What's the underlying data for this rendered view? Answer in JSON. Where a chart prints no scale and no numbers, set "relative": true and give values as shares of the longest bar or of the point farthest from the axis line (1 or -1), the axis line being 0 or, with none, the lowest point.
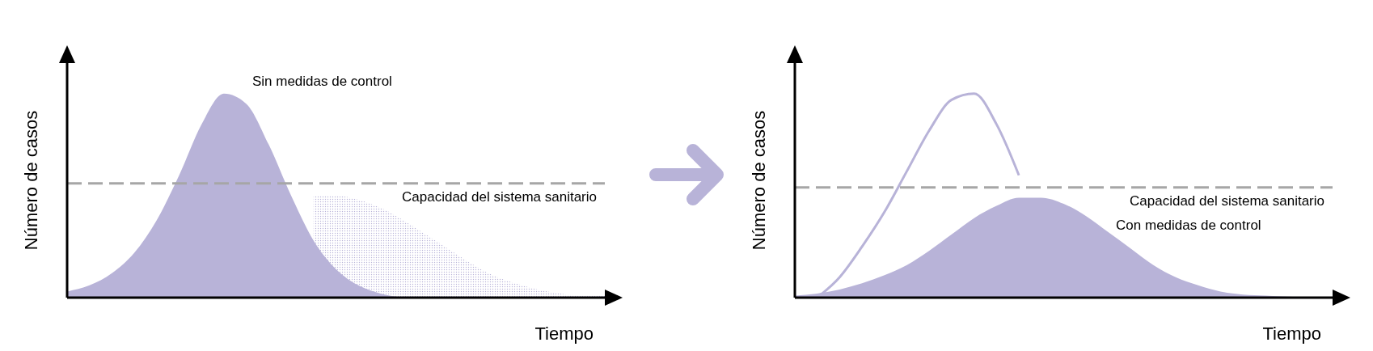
{
  "chart_data": [
    {
      "type": "area",
      "relative": true,
      "xlabel": "Tiempo",
      "ylabel": "Número de casos",
      "categories": [
        null,
        null,
        null,
        null,
        null,
        null,
        null,
        null,
        null,
        null,
        null,
        null,
        null,
        null,
        null,
        null,
        null,
        null,
        null,
        null,
        null,
        null,
        null,
        null,
        null
      ],
      "series": [
        {
          "color": "#b8b3d8",
          "line_style": "dotted",
          "values": [
            null,
            null,
            null,
            null,
            null,
            null,
            null,
            null,
            null,
            null,
            null,
            0.5,
            0.5,
            0.48,
            0.44,
            0.38,
            0.31,
            0.24,
            0.17,
            0.11,
            0.07,
            0.04,
            0.02,
            0.01,
            0.01
          ]
        },
        {
          "name": "Sin medidas de control",
          "color": "#b8b3d8",
          "values": [
            0.03,
            0.06,
            0.12,
            0.22,
            0.38,
            0.6,
            0.85,
            1.0,
            0.95,
            0.75,
            0.5,
            0.28,
            0.14,
            0.06,
            0.02,
            0,
            null,
            null,
            null,
            null,
            null,
            null,
            null,
            null,
            null
          ]
        }
      ],
      "ref_lines": [
        {
          "axis": "y",
          "value": 0.56,
          "label": "Capacidad del sistema sanitario",
          "color": "#a6a6a6",
          "line_style": "dashed"
        }
      ]
    },
    {
      "type": "area",
      "relative": true,
      "xlabel": "Tiempo",
      "ylabel": "Número de casos",
      "categories": [
        null,
        null,
        null,
        null,
        null,
        null,
        null,
        null,
        null,
        null,
        null,
        null,
        null,
        null,
        null,
        null,
        null,
        null,
        null,
        null,
        null,
        null,
        null,
        null,
        null
      ],
      "series": [
        {
          "type": "line",
          "color": "#b8b3d8",
          "values": [
            null,
            0,
            0.1,
            0.25,
            0.42,
            0.62,
            0.82,
            0.97,
            1.0,
            0.85,
            0.6,
            null,
            null,
            null,
            null,
            null,
            null,
            null,
            null,
            null,
            null,
            null,
            null,
            null,
            null
          ]
        },
        {
          "name": "Con medidas de control",
          "color": "#b8b3d8",
          "values": [
            0.01,
            0.02,
            0.04,
            0.07,
            0.11,
            0.16,
            0.23,
            0.31,
            0.39,
            0.45,
            0.49,
            0.49,
            0.46,
            0.4,
            0.32,
            0.24,
            0.16,
            0.1,
            0.06,
            0.03,
            0.015,
            0.01,
            0.005,
            0,
            0
          ]
        }
      ],
      "ref_lines": [
        {
          "axis": "y",
          "value": 0.54,
          "label": "Capacidad del sistema sanitario",
          "color": "#a6a6a6",
          "line_style": "dashed"
        }
      ]
    }
  ]
}
